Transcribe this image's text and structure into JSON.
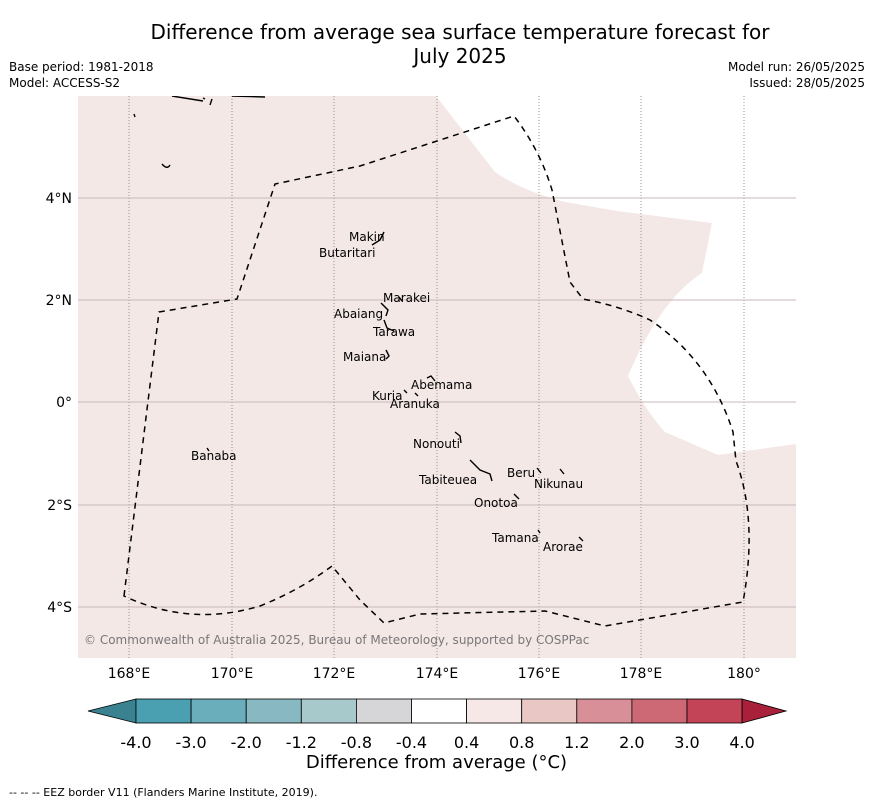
{
  "title_line1": "Difference from average sea surface temperature forecast for",
  "title_line2": "July 2025",
  "base_period": "Base period: 1981-2018",
  "model": "Model: ACCESS-S2",
  "model_run": "Model run: 26/05/2025",
  "issued": "Issued: 28/05/2025",
  "copyright": "© Commonwealth of Australia 2025, Bureau of Meteorology, supported by COSPPac",
  "lon_ticks": [
    "168°E",
    "170°E",
    "172°E",
    "174°E",
    "176°E",
    "178°E",
    "180°"
  ],
  "lat_ticks": [
    "4°N",
    "2°N",
    "0°",
    "2°S",
    "4°S"
  ],
  "islands": [
    "Makin",
    "Butaritari",
    "Marakei",
    "Abaiang",
    "Tarawa",
    "Maiana",
    "Abemama",
    "Kuria",
    "Aranuka",
    "Nonouti",
    "Beru",
    "Nikunau",
    "Tabiteuea",
    "Onotoa",
    "Tamana",
    "Arorae",
    "Banaba"
  ],
  "colorbar": {
    "labels": [
      "-4.0",
      "-3.0",
      "-2.0",
      "-1.2",
      "-0.8",
      "-0.4",
      "0.4",
      "0.8",
      "1.2",
      "2.0",
      "3.0",
      "4.0"
    ],
    "colors": [
      "#4aa0b0",
      "#6aaebb",
      "#88b9c2",
      "#a8c9cc",
      "#d6d6d8",
      "#ffffff",
      "#f5e8e7",
      "#e9c7c5",
      "#d98f98",
      "#cd6975",
      "#c24456"
    ],
    "low_color": "#3a8290",
    "high_color": "#a8203a",
    "title": "Difference from average (°C)"
  },
  "map_fill_color": "#f4e8e7",
  "eez_note": "--  --  -- EEZ border V11 (Flanders Marine Institute, 2019)."
}
